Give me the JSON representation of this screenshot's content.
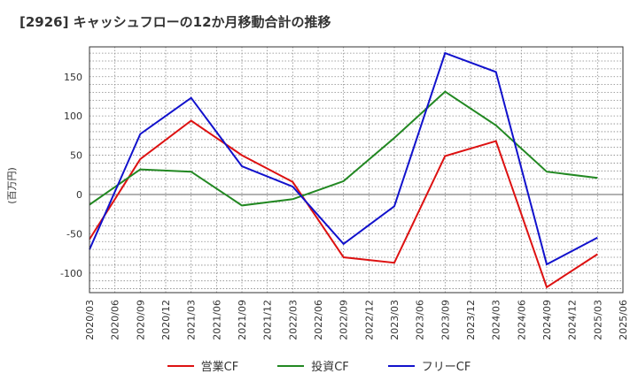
{
  "chart_data": {
    "type": "line",
    "title": "[2926]  キャッシュフローの12か月移動合計の推移",
    "ylabel": "(百万円)",
    "xlabel": "",
    "ylim": [
      -125,
      188
    ],
    "yticks": [
      150,
      100,
      50,
      0,
      -50,
      -100
    ],
    "ytick_labels": [
      "150",
      "100",
      "50",
      "0",
      "-50",
      "-100"
    ],
    "categories": [
      "2020/03",
      "2020/06",
      "2020/09",
      "2020/12",
      "2021/03",
      "2021/06",
      "2021/09",
      "2021/12",
      "2022/03",
      "2022/06",
      "2022/09",
      "2022/12",
      "2023/03",
      "2023/06",
      "2023/09",
      "2023/12",
      "2024/03",
      "2024/06",
      "2024/09",
      "2024/12",
      "2025/03",
      "2025/06"
    ],
    "grid": true,
    "legend_position": "bottom",
    "series": [
      {
        "name": "営業CF",
        "color": "#dd1111",
        "points": [
          [
            0,
            -57
          ],
          [
            2,
            45
          ],
          [
            4,
            94
          ],
          [
            6,
            50
          ],
          [
            8,
            16
          ],
          [
            10,
            -80
          ],
          [
            12,
            -87
          ],
          [
            14,
            49
          ],
          [
            16,
            68
          ],
          [
            18,
            -118
          ],
          [
            20,
            -76
          ]
        ]
      },
      {
        "name": "投資CF",
        "color": "#228822",
        "points": [
          [
            0,
            -13
          ],
          [
            2,
            32
          ],
          [
            4,
            29
          ],
          [
            6,
            -14
          ],
          [
            8,
            -6
          ],
          [
            10,
            17
          ],
          [
            12,
            72
          ],
          [
            14,
            131
          ],
          [
            16,
            88
          ],
          [
            18,
            29
          ],
          [
            20,
            21
          ]
        ]
      },
      {
        "name": "フリーCF",
        "color": "#1111cc",
        "points": [
          [
            0,
            -70
          ],
          [
            2,
            77
          ],
          [
            4,
            123
          ],
          [
            6,
            36
          ],
          [
            8,
            10
          ],
          [
            10,
            -63
          ],
          [
            12,
            -15
          ],
          [
            14,
            180
          ],
          [
            16,
            156
          ],
          [
            18,
            -89
          ],
          [
            20,
            -55
          ]
        ]
      }
    ]
  }
}
